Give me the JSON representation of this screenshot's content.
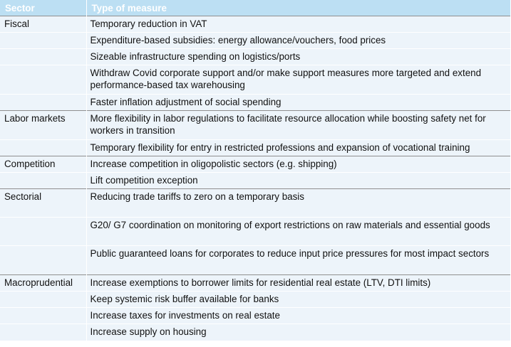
{
  "header": {
    "sector": "Sector",
    "measure": "Type of measure"
  },
  "rows": [
    {
      "sector": "Fiscal",
      "measure": "Temporary reduction in VAT"
    },
    {
      "sector": "",
      "measure": "Expenditure-based subsidies: energy allowance/vouchers, food prices"
    },
    {
      "sector": "",
      "measure": "Sizeable infrastructure spending on logistics/ports"
    },
    {
      "sector": "",
      "measure": "Withdraw Covid corporate support and/or make support measures more targeted and extend performance-based tax warehousing"
    },
    {
      "sector": "",
      "measure": "Faster inflation adjustment of social spending"
    },
    {
      "sector": "Labor markets",
      "measure": "More flexibility in labor regulations to facilitate resource allocation while boosting safety net for workers in transition"
    },
    {
      "sector": "",
      "measure": "Temporary flexibility for entry in restricted professions and expansion of vocational training"
    },
    {
      "sector": "Competition",
      "measure": "Increase competition in oligopolistic sectors (e.g. shipping)"
    },
    {
      "sector": "",
      "measure": "Lift competition exception"
    },
    {
      "sector": "Sectorial",
      "measure": "Reducing trade tariffs to zero on a temporary basis"
    },
    {
      "sector": "",
      "measure": "G20/ G7 coordination on monitoring of export restrictions on raw materials and essential goods"
    },
    {
      "sector": "",
      "measure": "Public guaranteed loans for corporates to reduce input price pressures for most impact sectors"
    },
    {
      "sector": "Macroprudential",
      "measure": "Increase exemptions to borrower limits for residential real estate (LTV, DTI limits)"
    },
    {
      "sector": "",
      "measure": "Keep systemic risk buffer available for banks"
    },
    {
      "sector": "",
      "measure": "Increase taxes for investments on real estate"
    },
    {
      "sector": "",
      "measure": "Increase supply on housing"
    }
  ]
}
